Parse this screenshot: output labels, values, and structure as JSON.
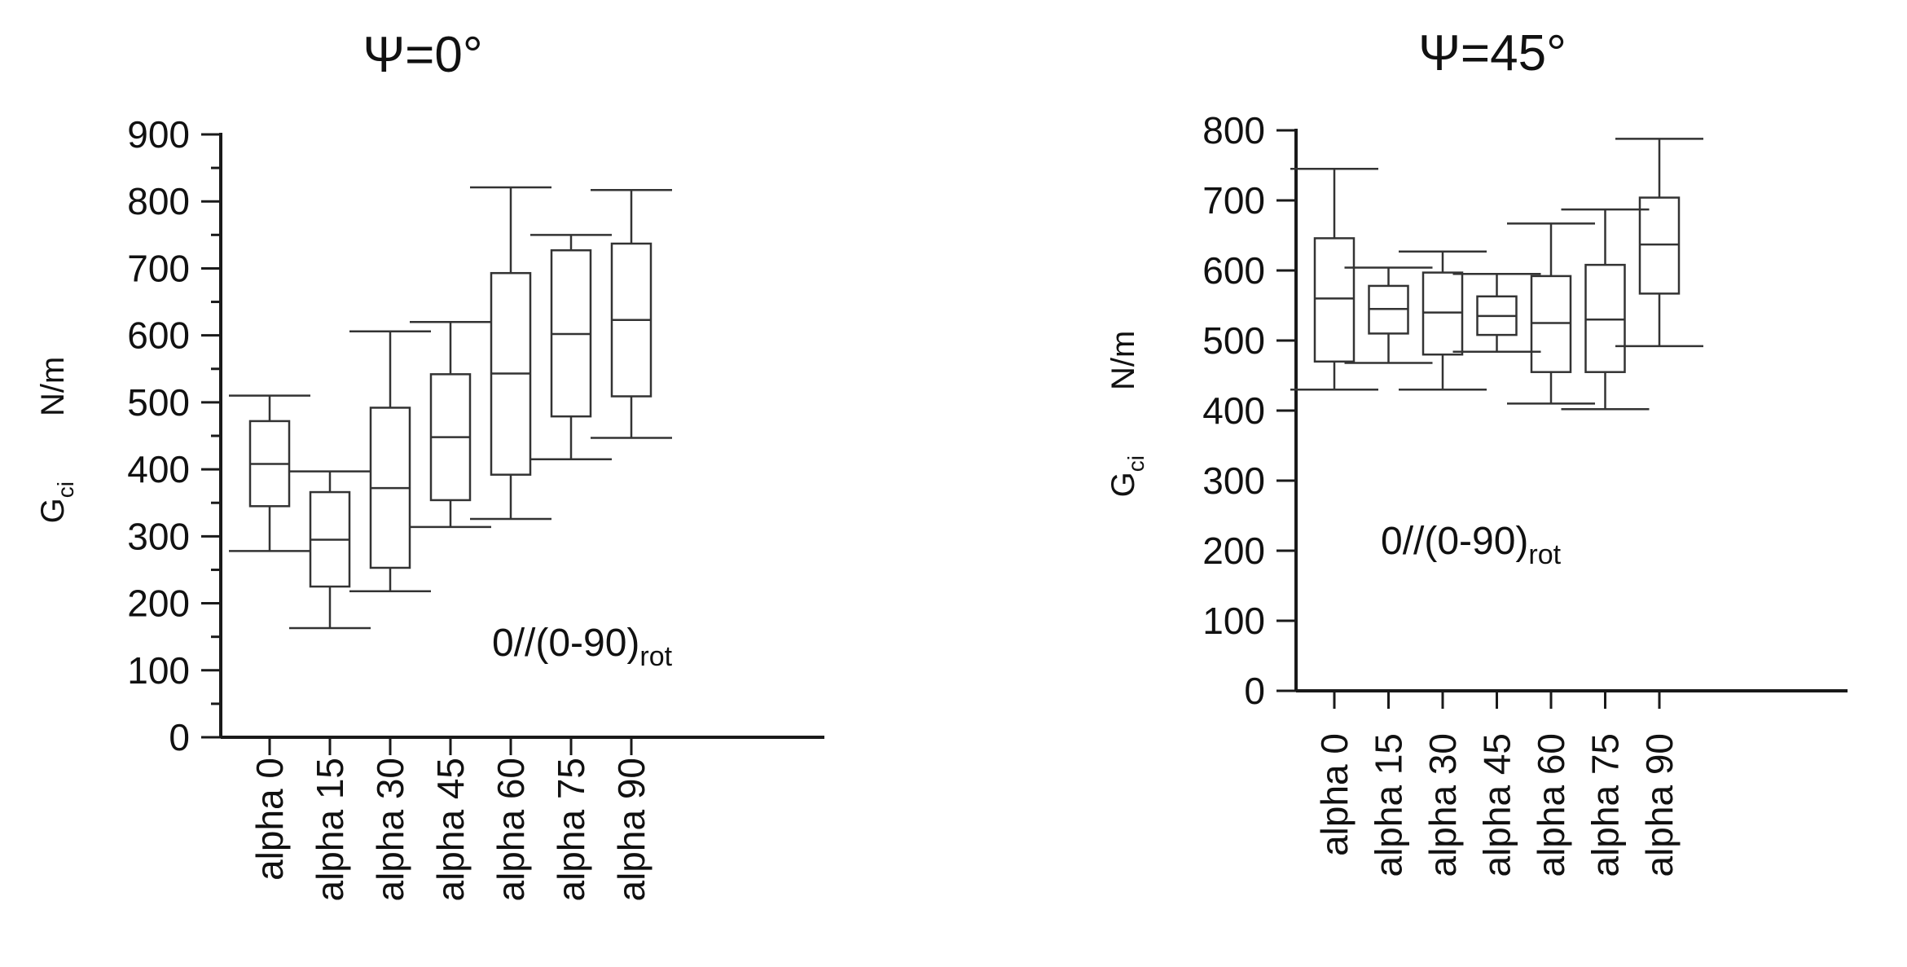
{
  "chart_data": [
    {
      "type": "box",
      "title": "Ψ=0°",
      "ylabel_main": "G",
      "ylabel_sub": "ci",
      "ylabel_unit": "N/m",
      "annotation_main": "0//(0-90)",
      "annotation_sub": "rot",
      "ylim": [
        0,
        900
      ],
      "yticks": [
        0,
        100,
        200,
        300,
        400,
        500,
        600,
        700,
        800,
        900
      ],
      "categories": [
        "alpha 0",
        "alpha 15",
        "alpha 30",
        "alpha 45",
        "alpha 60",
        "alpha 75",
        "alpha 90"
      ],
      "boxes": [
        {
          "min": 278,
          "q1": 345,
          "median": 408,
          "q3": 472,
          "max": 510
        },
        {
          "min": 163,
          "q1": 225,
          "median": 295,
          "q3": 366,
          "max": 397
        },
        {
          "min": 218,
          "q1": 253,
          "median": 372,
          "q3": 492,
          "max": 606
        },
        {
          "min": 314,
          "q1": 354,
          "median": 448,
          "q3": 542,
          "max": 620
        },
        {
          "min": 326,
          "q1": 392,
          "median": 543,
          "q3": 693,
          "max": 821
        },
        {
          "min": 415,
          "q1": 479,
          "median": 602,
          "q3": 727,
          "max": 750
        },
        {
          "min": 447,
          "q1": 509,
          "median": 623,
          "q3": 737,
          "max": 817
        }
      ]
    },
    {
      "type": "box",
      "title": "Ψ=45°",
      "ylabel_main": "G",
      "ylabel_sub": "ci",
      "ylabel_unit": "N/m",
      "annotation_main": "0//(0-90)",
      "annotation_sub": "rot",
      "ylim": [
        0,
        800
      ],
      "yticks": [
        0,
        100,
        200,
        300,
        400,
        500,
        600,
        700,
        800
      ],
      "categories": [
        "alpha 0",
        "alpha 15",
        "alpha 30",
        "alpha 45",
        "alpha 60",
        "alpha 75",
        "alpha 90"
      ],
      "boxes": [
        {
          "min": 430,
          "q1": 470,
          "median": 560,
          "q3": 646,
          "max": 745
        },
        {
          "min": 468,
          "q1": 510,
          "median": 545,
          "q3": 578,
          "max": 604
        },
        {
          "min": 430,
          "q1": 480,
          "median": 540,
          "q3": 597,
          "max": 627
        },
        {
          "min": 484,
          "q1": 508,
          "median": 535,
          "q3": 563,
          "max": 595
        },
        {
          "min": 410,
          "q1": 455,
          "median": 525,
          "q3": 592,
          "max": 667
        },
        {
          "min": 402,
          "q1": 455,
          "median": 530,
          "q3": 608,
          "max": 687
        },
        {
          "min": 492,
          "q1": 567,
          "median": 637,
          "q3": 704,
          "max": 788
        }
      ]
    }
  ]
}
